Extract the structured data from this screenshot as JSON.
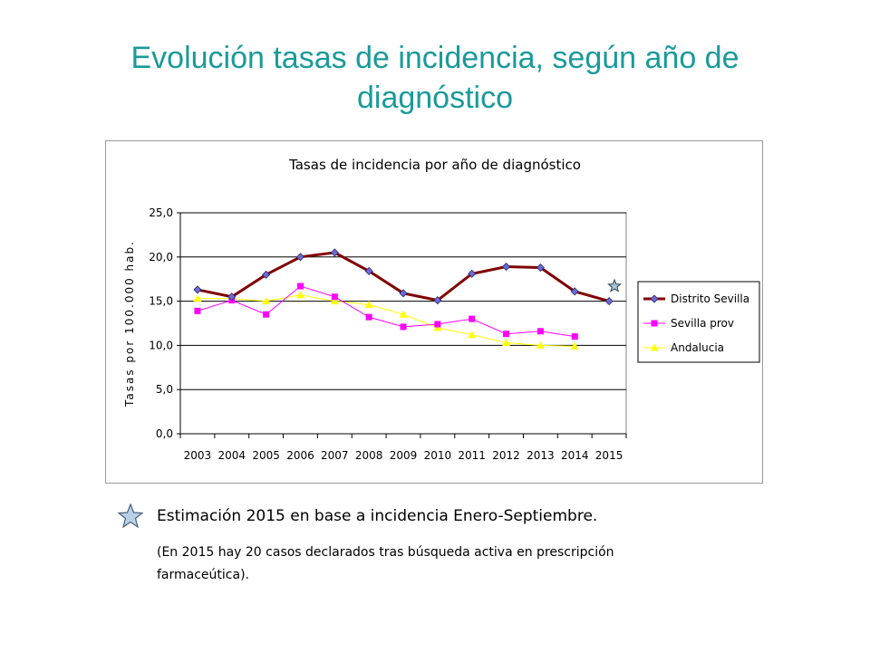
{
  "slide": {
    "title": "Evolución tasas de incidencia, según año de diagnóstico"
  },
  "chart_data": {
    "type": "line",
    "title": "Tasas de incidencia por año de diagnóstico",
    "xlabel": "",
    "ylabel": "Tasas por 100.000 hab.",
    "categories": [
      "2003",
      "2004",
      "2005",
      "2006",
      "2007",
      "2008",
      "2009",
      "2010",
      "2011",
      "2012",
      "2013",
      "2014",
      "2015"
    ],
    "ylim": [
      0,
      25
    ],
    "yticks": [
      "0,0",
      "5,0",
      "10,0",
      "15,0",
      "20,0",
      "25,0"
    ],
    "grid": true,
    "legend_position": "right",
    "series": [
      {
        "name": "Distrito Sevilla",
        "color": "#800000",
        "marker": "diamond",
        "marker_color": "#6b6bd6",
        "values": [
          16.3,
          15.5,
          18.0,
          20.0,
          20.5,
          18.4,
          15.9,
          15.1,
          18.1,
          18.9,
          18.8,
          16.1,
          15.0
        ]
      },
      {
        "name": "Sevilla prov",
        "color": "#ff00ff",
        "marker": "square",
        "marker_color": "#ff00ff",
        "values": [
          13.9,
          15.1,
          13.5,
          16.7,
          15.5,
          13.2,
          12.1,
          12.4,
          13.0,
          11.3,
          11.6,
          11.0,
          null
        ]
      },
      {
        "name": "Andalucia",
        "color": "#ffff00",
        "marker": "triangle",
        "marker_color": "#ffff00",
        "values": [
          15.3,
          15.3,
          15.0,
          15.7,
          15.0,
          14.6,
          13.5,
          12.0,
          11.2,
          10.3,
          10.0,
          9.9,
          null
        ]
      }
    ],
    "annotation": {
      "category": "2015",
      "value": 16.7,
      "marker": "star"
    }
  },
  "note": {
    "main": "Estimación 2015 en base a incidencia Enero-Septiembre.",
    "sub": "(En 2015 hay 20 casos declarados tras búsqueda activa en prescripción farmaceútica)."
  }
}
